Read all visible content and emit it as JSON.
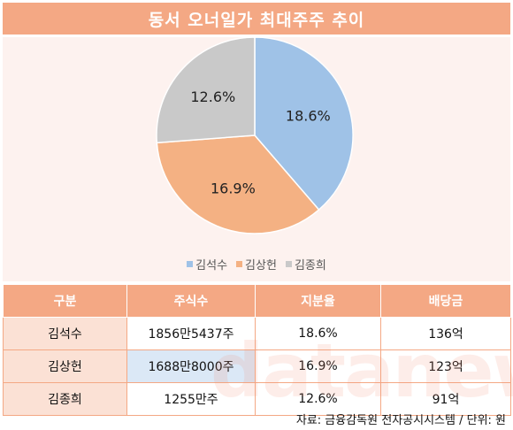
{
  "title": "동서 오너일가 최대주주 추이",
  "chart_data": {
    "type": "pie",
    "labels": [
      "김석수",
      "김상헌",
      "김종희"
    ],
    "values": [
      18.6,
      16.9,
      12.6
    ],
    "value_labels": [
      "18.6%",
      "16.9%",
      "12.6%"
    ],
    "colors": [
      "#9fc2e7",
      "#f4b183",
      "#c9c9c9"
    ],
    "legend_position": "bottom"
  },
  "table": {
    "headers": [
      "구분",
      "주식수",
      "지분율",
      "배당금"
    ],
    "rows": [
      [
        "김석수",
        "1856만5437주",
        "18.6%",
        "136억"
      ],
      [
        "김상헌",
        "1688만8000주",
        "16.9%",
        "123억"
      ],
      [
        "김종희",
        "1255만주",
        "12.6%",
        "91억"
      ]
    ]
  },
  "watermark": "datanews",
  "source": "자료: 금융감독원 전자공시시스템 / 단위: 원"
}
